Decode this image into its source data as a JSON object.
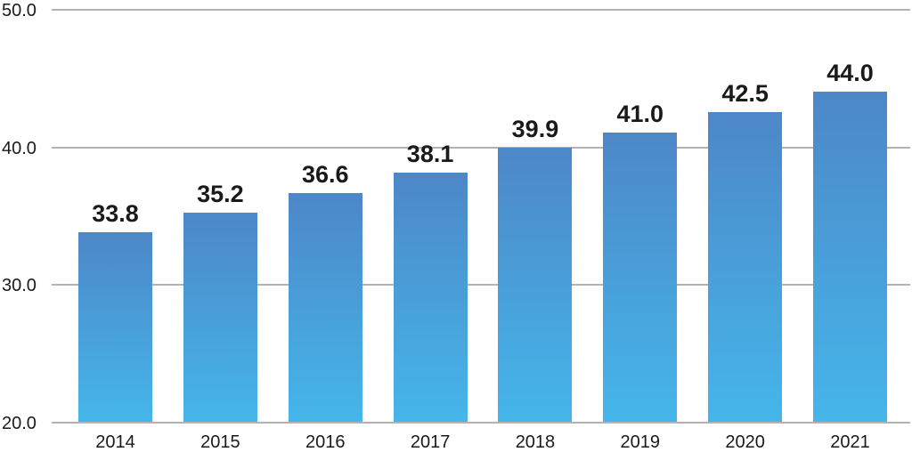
{
  "chart_data": {
    "type": "bar",
    "title": "",
    "xlabel": "",
    "ylabel": "",
    "categories": [
      "2014",
      "2015",
      "2016",
      "2017",
      "2018",
      "2019",
      "2020",
      "2021"
    ],
    "values": [
      33.8,
      35.2,
      36.6,
      38.1,
      39.9,
      41.0,
      42.5,
      44.0
    ],
    "value_labels": [
      "33.8",
      "35.2",
      "36.6",
      "38.1",
      "39.9",
      "41.0",
      "42.5",
      "44.0"
    ],
    "ylim": [
      20,
      50
    ],
    "y_ticks": [
      {
        "value": 50,
        "label": "50.0"
      },
      {
        "value": 40,
        "label": "40.0"
      },
      {
        "value": 30,
        "label": "30.0"
      },
      {
        "value": 20,
        "label": "20.0"
      }
    ],
    "grid": "horizontal",
    "legend": "none",
    "colors": {
      "bar_gradient_top": "#4d87c8",
      "bar_gradient_bottom": "#45b6ea",
      "gridline": "#b3b3b3",
      "text": "#1a1a1a",
      "background": "#ffffff"
    }
  }
}
